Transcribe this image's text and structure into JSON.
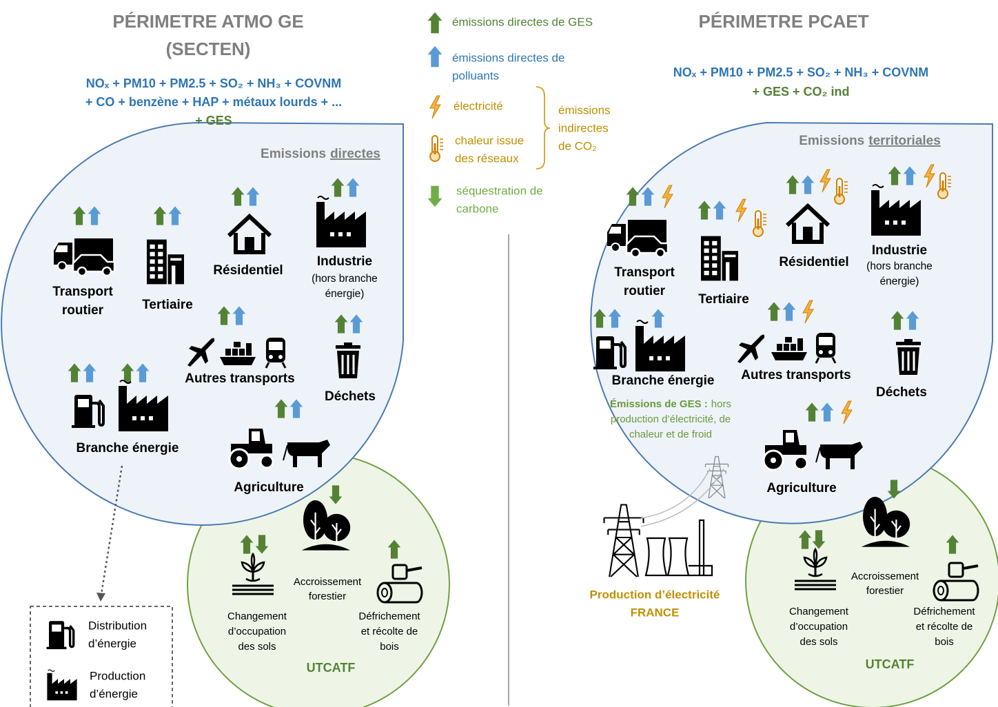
{
  "legend": {
    "ges": "émissions directes de GES",
    "polluants": [
      "émissions directes de",
      "polluants"
    ],
    "electricite": "électricité",
    "chaleur": [
      "chaleur issue",
      "des réseaux"
    ],
    "indirectes": [
      "émissions",
      "indirectes",
      "de CO₂"
    ],
    "sequestration": [
      "séquestration de",
      "carbone"
    ]
  },
  "left": {
    "title": [
      "PÉRIMETRE ATMO GE",
      "(SECTEN)"
    ],
    "pollutants": [
      "NOₓ + PM10 + PM2.5 + SO₂ + NH₃ + COVNM",
      "+ CO + benzène + HAP + métaux lourds + ..."
    ],
    "ges": "+ GES",
    "scope": [
      "Emissions",
      "directes"
    ],
    "sectors": {
      "transport": [
        "Transport",
        "routier"
      ],
      "tertiaire": "Tertiaire",
      "residentiel": "Résidentiel",
      "industrie": "Industrie",
      "industrie_note": [
        "(hors branche",
        "énergie)"
      ],
      "autres": "Autres transports",
      "dechets": "Déchets",
      "branche": "Branche énergie",
      "agriculture": "Agriculture"
    },
    "utcatf": {
      "accroissement": [
        "Accroissement",
        "forestier"
      ],
      "changement": [
        "Changement",
        "d’occupation",
        "des sols"
      ],
      "defrichement": [
        "Défrichement",
        "et récolte de",
        "bois"
      ],
      "title": "UTCATF"
    },
    "box": {
      "distribution": [
        "Distribution",
        "d’énergie"
      ],
      "production": [
        "Production",
        "d’énergie"
      ]
    }
  },
  "right": {
    "title": "PÉRIMETRE PCAET",
    "pollutants": "NOₓ + PM10 + PM2.5 + SO₂ + NH₃ + COVNM",
    "ges": "+ GES + CO₂ ind",
    "scope": [
      "Emissions",
      "territoriales"
    ],
    "sectors": {
      "transport": [
        "Transport",
        "routier"
      ],
      "tertiaire": "Tertiaire",
      "residentiel": "Résidentiel",
      "industrie": "Industrie",
      "industrie_note": [
        "(hors branche",
        "énergie)"
      ],
      "branche": "Branche énergie",
      "autres": "Autres transports",
      "dechets": "Déchets",
      "agriculture": "Agriculture"
    },
    "ges_note": {
      "bold": "Émissions de GES :",
      "rest": [
        "hors",
        "production d’électricité, de",
        "chaleur et de froid"
      ]
    },
    "utcatf": {
      "accroissement": [
        "Accroissement",
        "forestier"
      ],
      "changement": [
        "Changement",
        "d’occupation",
        "des sols"
      ],
      "defrichement": [
        "Défrichement",
        "et récolte de",
        "bois"
      ],
      "title": "UTCATF"
    },
    "production": [
      "Production d’électricité",
      "FRANCE"
    ]
  }
}
